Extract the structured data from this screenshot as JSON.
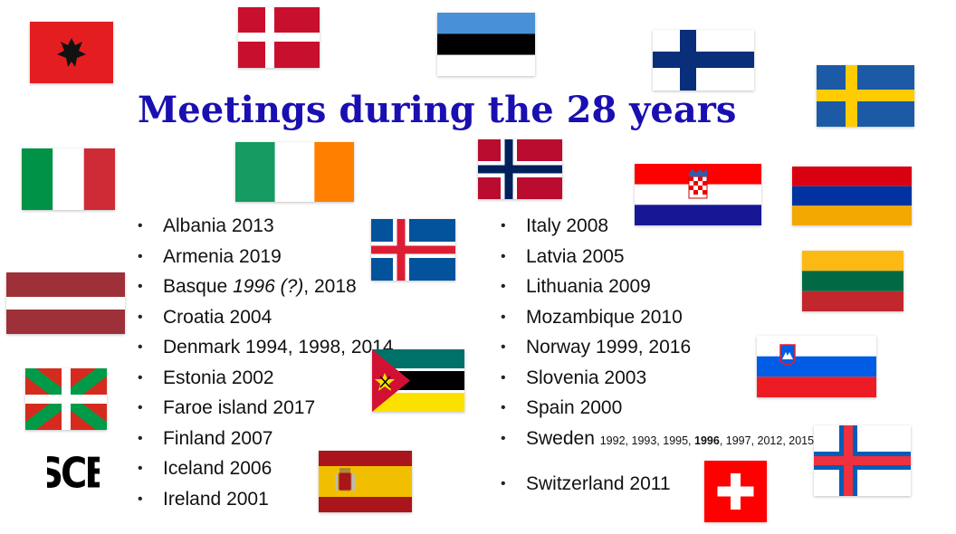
{
  "title": "Meetings during the 28 years",
  "left_list": [
    {
      "name": "Albania",
      "years": "2013"
    },
    {
      "name": "Armenia",
      "years": "2019"
    },
    {
      "name": "Basque",
      "years_italic": "1996 (?)",
      "years_rest": ", 2018"
    },
    {
      "name": "Croatia",
      "years": "2004"
    },
    {
      "name": "Denmark",
      "years": "1994, 1998, 2014"
    },
    {
      "name": "Estonia",
      "years": "2002"
    },
    {
      "name": "Faroe island",
      "years": "2017"
    },
    {
      "name": "Finland",
      "years": "2007"
    },
    {
      "name": "Iceland",
      "years": "2006"
    },
    {
      "name": "Ireland",
      "years": "2001"
    }
  ],
  "right_list": [
    {
      "name": "Italy",
      "years": "2008"
    },
    {
      "name": "Latvia",
      "years": "2005"
    },
    {
      "name": "Lithuania",
      "years": "2009"
    },
    {
      "name": "Mozambique",
      "years": "2010"
    },
    {
      "name": "Norway",
      "years": "1999, 2016"
    },
    {
      "name": "Slovenia",
      "years": "2003"
    },
    {
      "name": "Spain",
      "years": "2000"
    },
    {
      "name": "Sweden",
      "years_a": "1992, 1993, 1995,",
      "years_bold": "1996",
      "years_b": ", 1997, 2012, 2015"
    },
    {
      "name": "Switzerland",
      "years": "2011"
    }
  ],
  "logo_text": "SCB",
  "flags": [
    "albania-flag",
    "denmark-flag",
    "estonia-flag",
    "finland-flag",
    "sweden-flag",
    "italy-flag",
    "ireland-flag",
    "norway-flag",
    "croatia-flag",
    "armenia-flag",
    "iceland-flag",
    "latvia-flag",
    "lithuania-flag",
    "basque-flag",
    "mozambique-flag",
    "slovenia-flag",
    "faroe-flag",
    "spain-flag",
    "switzerland-flag"
  ]
}
